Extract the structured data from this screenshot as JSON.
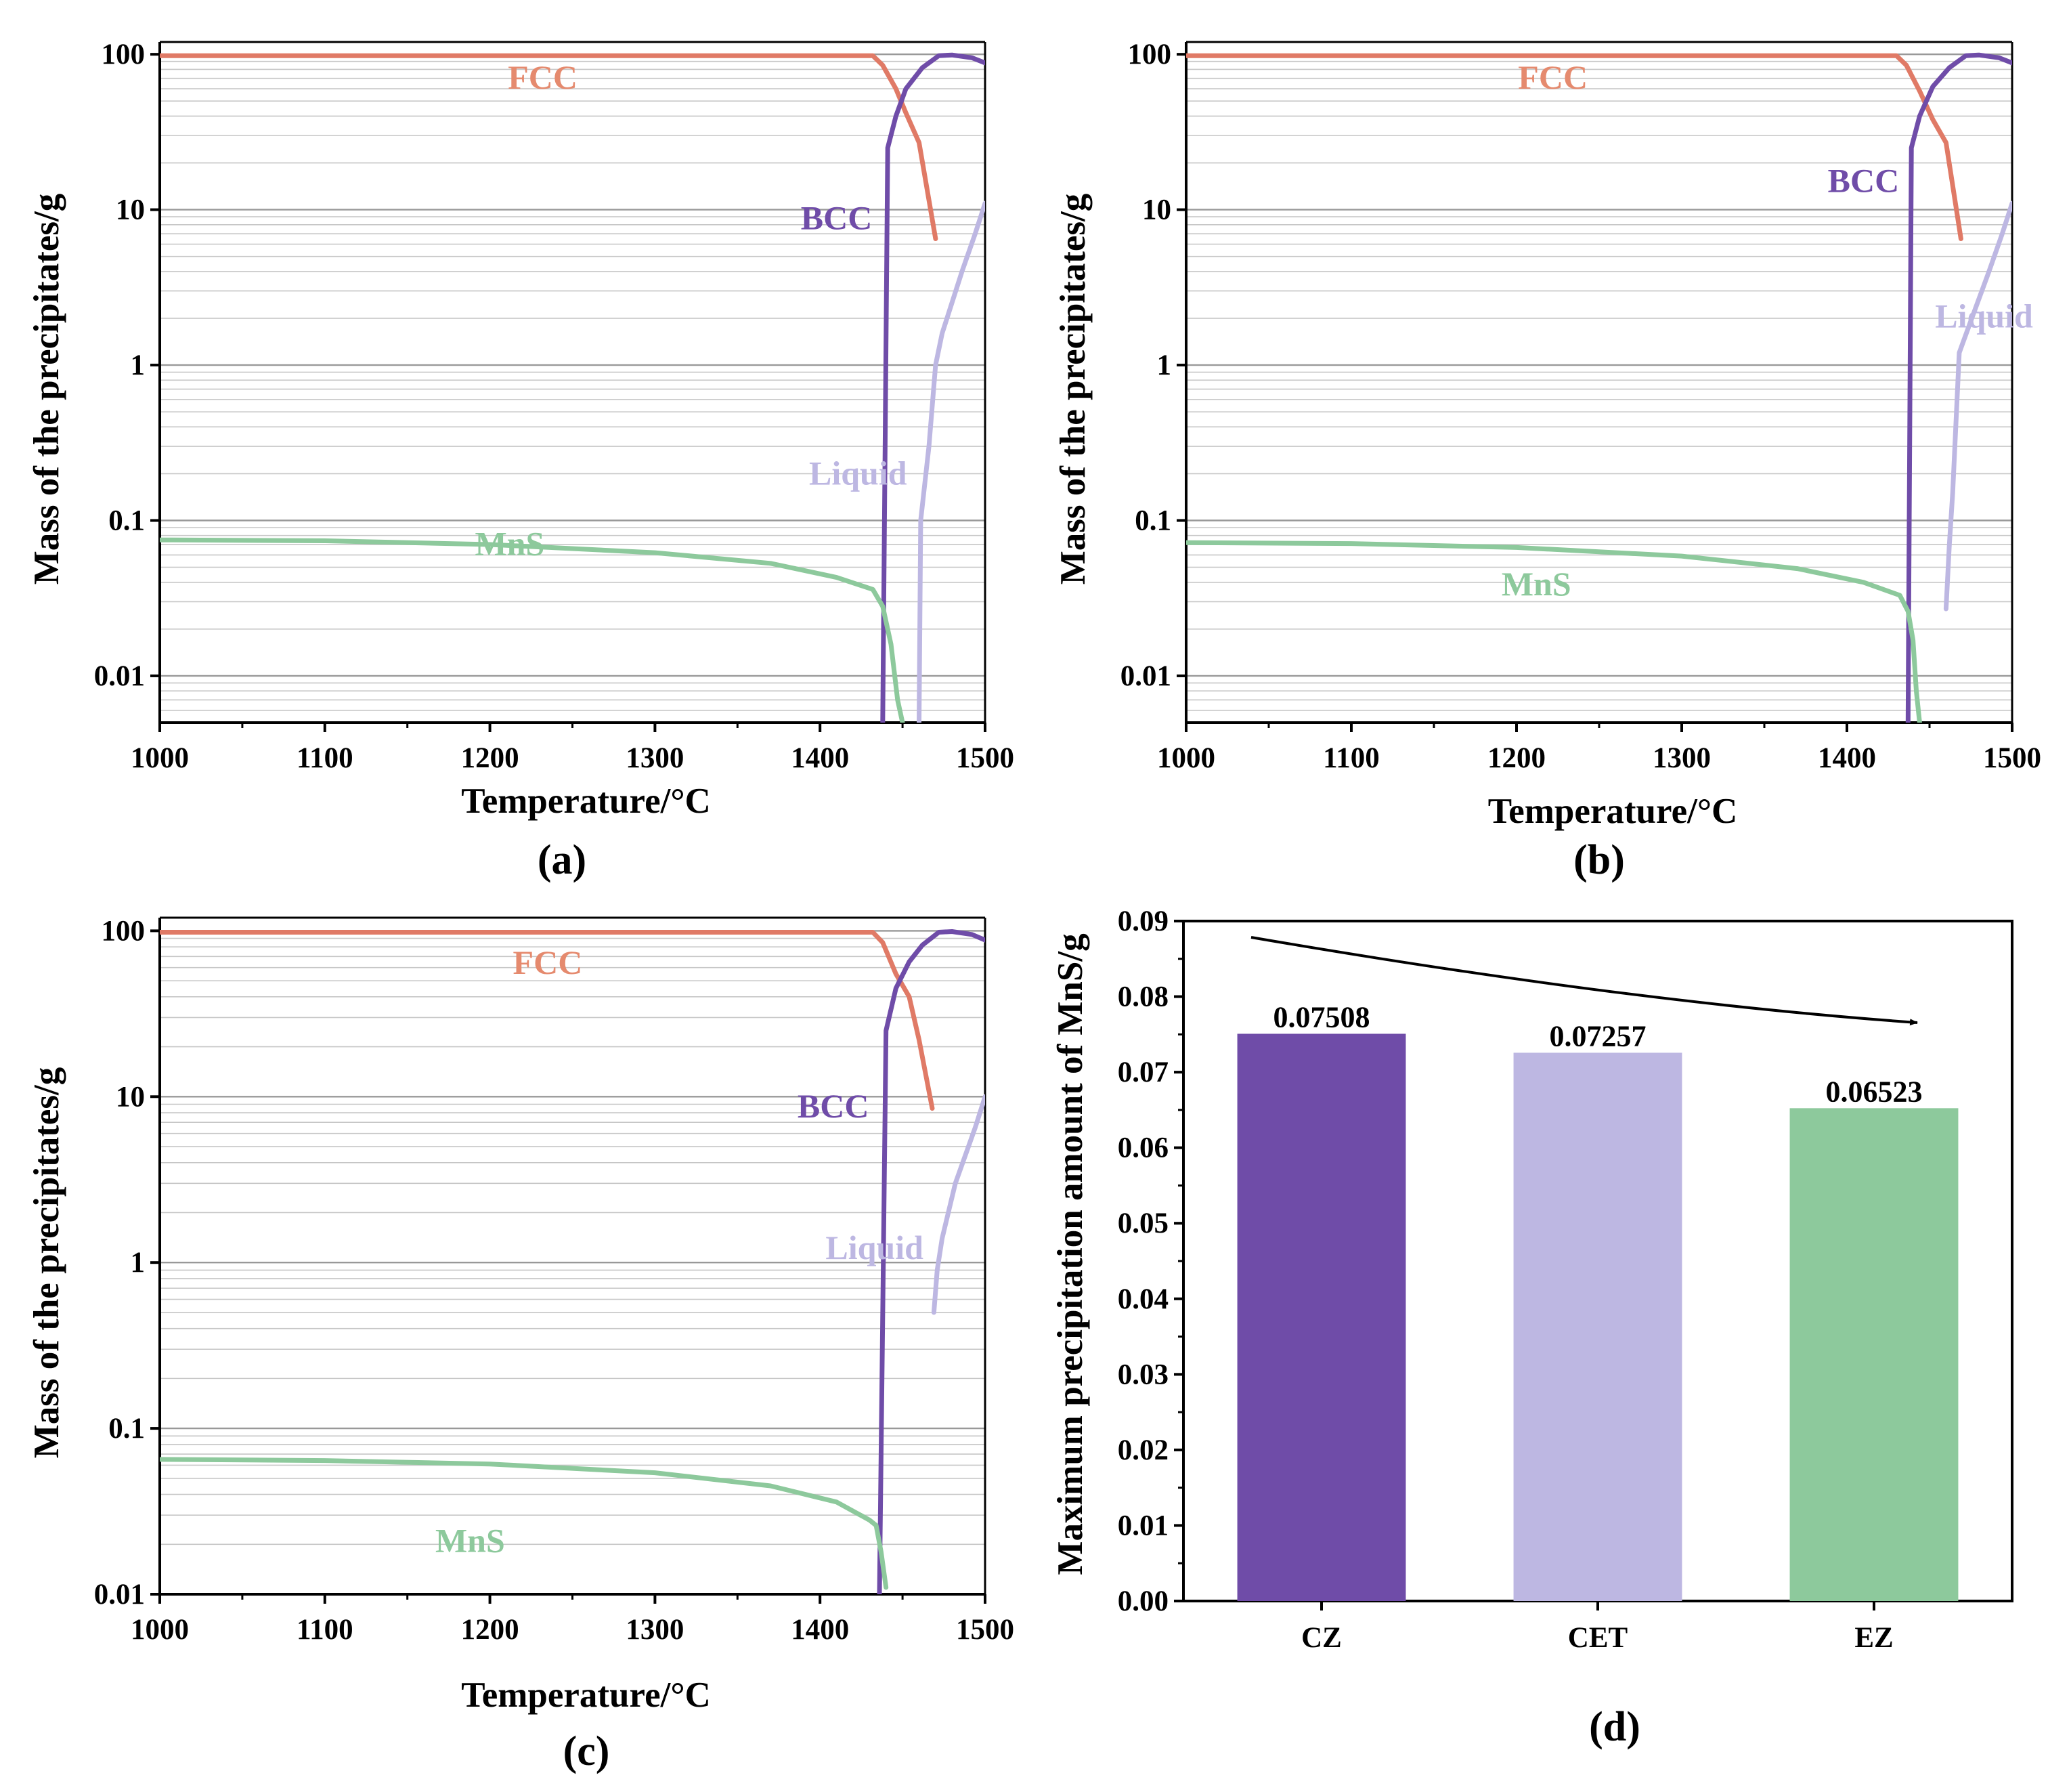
{
  "figure": {
    "panels": [
      "(a)",
      "(b)",
      "(c)",
      "(d)"
    ]
  },
  "colors": {
    "FCC": "#E58A6E",
    "FCC_line": "#E07A66",
    "BCC": "#6F4CA8",
    "Liquid": "#BDB7E2",
    "MnS": "#8DC99C",
    "grid_major": "#999999",
    "grid_minor": "#c6c6c6"
  },
  "chart_data": [
    {
      "id": "a",
      "type": "line",
      "panel_label": "(a)",
      "xlabel": "Temperature/°C",
      "ylabel": "Mass of the precipitates/g",
      "xlim": [
        1000,
        1500
      ],
      "ylim": [
        0.005,
        120
      ],
      "yscale": "log",
      "xticks": [
        1000,
        1100,
        1200,
        1300,
        1400,
        1500
      ],
      "yticks": [
        0.01,
        0.1,
        1,
        10,
        100
      ],
      "ytick_labels": [
        "0.01",
        "0.1",
        "1",
        "10",
        "100"
      ],
      "grid": true,
      "series": [
        {
          "name": "FCC",
          "label_at": [
            1232,
            60
          ],
          "points": [
            [
              1000,
              98
            ],
            [
              1432,
              98
            ],
            [
              1438,
              85
            ],
            [
              1446,
              60
            ],
            [
              1452,
              42
            ],
            [
              1460,
              27
            ],
            [
              1470,
              6.5
            ]
          ]
        },
        {
          "name": "BCC",
          "label_at": [
            1410,
            7.5
          ],
          "points": [
            [
              1438,
              0.004
            ],
            [
              1441,
              25
            ],
            [
              1446,
              40
            ],
            [
              1452,
              60
            ],
            [
              1462,
              82
            ],
            [
              1472,
              98
            ],
            [
              1480,
              99
            ],
            [
              1492,
              95
            ],
            [
              1500,
              88
            ]
          ]
        },
        {
          "name": "Liquid",
          "label_at": [
            1423,
            0.17
          ],
          "points": [
            [
              1460,
              0.004
            ],
            [
              1461,
              0.1
            ],
            [
              1466,
              0.3
            ],
            [
              1470,
              1.0
            ],
            [
              1474,
              1.6
            ],
            [
              1486,
              4
            ],
            [
              1494,
              7
            ],
            [
              1500,
              11
            ]
          ]
        },
        {
          "name": "MnS",
          "label_at": [
            1212,
            0.06
          ],
          "points": [
            [
              1000,
              0.075
            ],
            [
              1100,
              0.074
            ],
            [
              1200,
              0.07
            ],
            [
              1300,
              0.062
            ],
            [
              1370,
              0.053
            ],
            [
              1410,
              0.043
            ],
            [
              1432,
              0.036
            ],
            [
              1438,
              0.028
            ],
            [
              1443,
              0.016
            ],
            [
              1447,
              0.007
            ],
            [
              1450,
              0.004
            ]
          ]
        }
      ]
    },
    {
      "id": "b",
      "type": "line",
      "panel_label": "(b)",
      "xlabel": "Temperature/°C",
      "ylabel": "Mass of the precipitates/g",
      "xlim": [
        1000,
        1500
      ],
      "ylim": [
        0.005,
        120
      ],
      "yscale": "log",
      "xticks": [
        1000,
        1100,
        1200,
        1300,
        1400,
        1500
      ],
      "yticks": [
        0.01,
        0.1,
        1,
        10,
        100
      ],
      "ytick_labels": [
        "0.01",
        "0.1",
        "1",
        "10",
        "100"
      ],
      "grid": true,
      "series": [
        {
          "name": "FCC",
          "label_at": [
            1222,
            60
          ],
          "points": [
            [
              1000,
              98
            ],
            [
              1430,
              98
            ],
            [
              1436,
              85
            ],
            [
              1444,
              58
            ],
            [
              1452,
              38
            ],
            [
              1460,
              27
            ],
            [
              1469,
              6.5
            ]
          ]
        },
        {
          "name": "BCC",
          "label_at": [
            1410,
            13
          ],
          "points": [
            [
              1437,
              0.004
            ],
            [
              1439,
              25
            ],
            [
              1444,
              40
            ],
            [
              1452,
              62
            ],
            [
              1462,
              82
            ],
            [
              1472,
              98
            ],
            [
              1480,
              99
            ],
            [
              1492,
              95
            ],
            [
              1500,
              88
            ]
          ]
        },
        {
          "name": "Liquid",
          "label_at": [
            1483,
            1.75
          ],
          "points": [
            [
              1460,
              0.027
            ],
            [
              1462,
              0.07
            ],
            [
              1464,
              0.15
            ],
            [
              1468,
              1.2
            ],
            [
              1474,
              1.8
            ],
            [
              1486,
              4
            ],
            [
              1494,
              7
            ],
            [
              1500,
              11
            ]
          ]
        },
        {
          "name": "MnS",
          "label_at": [
            1212,
            0.033
          ],
          "points": [
            [
              1000,
              0.072
            ],
            [
              1100,
              0.071
            ],
            [
              1200,
              0.067
            ],
            [
              1300,
              0.059
            ],
            [
              1370,
              0.049
            ],
            [
              1410,
              0.04
            ],
            [
              1432,
              0.033
            ],
            [
              1437,
              0.026
            ],
            [
              1440,
              0.017
            ],
            [
              1442,
              0.008
            ],
            [
              1444,
              0.004
            ]
          ]
        }
      ]
    },
    {
      "id": "c",
      "type": "line",
      "panel_label": "(c)",
      "xlabel": "Temperature/°C",
      "ylabel": "Mass of the precipitates/g",
      "xlim": [
        1000,
        1500
      ],
      "ylim": [
        0.01,
        120
      ],
      "yscale": "log",
      "xticks": [
        1000,
        1100,
        1200,
        1300,
        1400,
        1500
      ],
      "yticks": [
        0.01,
        0.1,
        1,
        10,
        100
      ],
      "ytick_labels": [
        "0.01",
        "0.1",
        "1",
        "10",
        "100"
      ],
      "grid": true,
      "series": [
        {
          "name": "FCC",
          "label_at": [
            1235,
            55
          ],
          "points": [
            [
              1000,
              98
            ],
            [
              1432,
              98
            ],
            [
              1438,
              85
            ],
            [
              1446,
              55
            ],
            [
              1454,
              40
            ],
            [
              1460,
              22
            ],
            [
              1468,
              8.5
            ]
          ]
        },
        {
          "name": "BCC",
          "label_at": [
            1408,
            7.5
          ],
          "points": [
            [
              1436,
              0.009
            ],
            [
              1440,
              25
            ],
            [
              1446,
              45
            ],
            [
              1454,
              65
            ],
            [
              1462,
              82
            ],
            [
              1472,
              98
            ],
            [
              1480,
              99
            ],
            [
              1492,
              95
            ],
            [
              1500,
              88
            ]
          ]
        },
        {
          "name": "Liquid",
          "label_at": [
            1433,
            1.05
          ],
          "points": [
            [
              1469,
              0.5
            ],
            [
              1471,
              0.9
            ],
            [
              1474,
              1.4
            ],
            [
              1482,
              3
            ],
            [
              1494,
              6.5
            ],
            [
              1500,
              10
            ]
          ]
        },
        {
          "name": "MnS",
          "label_at": [
            1188,
            0.018
          ],
          "points": [
            [
              1000,
              0.065
            ],
            [
              1100,
              0.064
            ],
            [
              1200,
              0.061
            ],
            [
              1300,
              0.054
            ],
            [
              1370,
              0.045
            ],
            [
              1410,
              0.036
            ],
            [
              1430,
              0.028
            ],
            [
              1434,
              0.026
            ],
            [
              1437,
              0.018
            ],
            [
              1440,
              0.011
            ]
          ]
        }
      ]
    },
    {
      "id": "d",
      "type": "bar",
      "panel_label": "(d)",
      "categories": [
        "CZ",
        "CET",
        "EZ"
      ],
      "values": [
        0.07508,
        0.07257,
        0.06523
      ],
      "value_labels": [
        "0.07508",
        "0.07257",
        "0.06523"
      ],
      "bar_colors": [
        "#6F4CA8",
        "#BDB7E2",
        "#8DC99C"
      ],
      "xlabel": "",
      "ylabel": "Maximum precipitation amount of MnS/g",
      "ylim": [
        0.0,
        0.09
      ],
      "yticks": [
        0.0,
        0.01,
        0.02,
        0.03,
        0.04,
        0.05,
        0.06,
        0.07,
        0.08,
        0.09
      ],
      "ytick_labels": [
        "0.00",
        "0.01",
        "0.02",
        "0.03",
        "0.04",
        "0.05",
        "0.06",
        "0.07",
        "0.08",
        "0.09"
      ],
      "grid": false,
      "annotation": "decreasing-trend-arrow"
    }
  ]
}
